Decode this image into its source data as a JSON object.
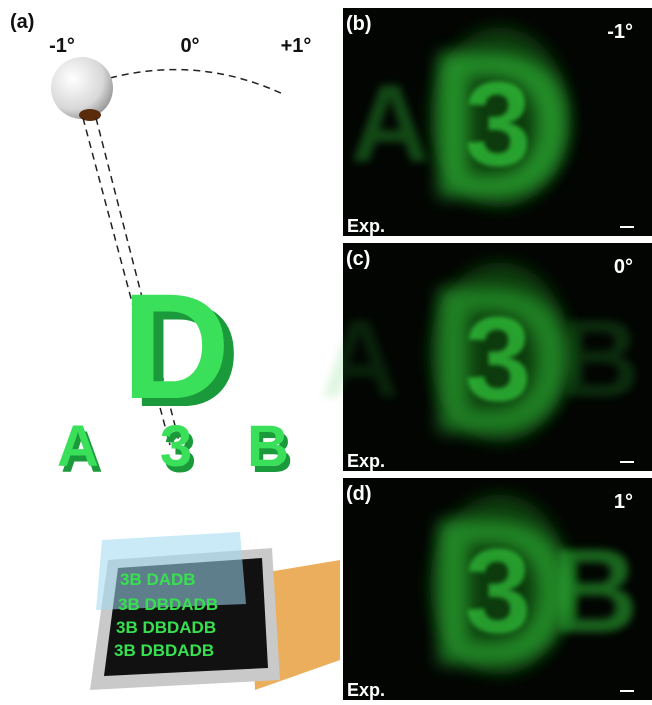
{
  "panel_a": {
    "label": "(a)",
    "angles": [
      "-1°",
      "0°",
      "+1°"
    ],
    "big_letter": "D",
    "row_letters": [
      "A",
      "3",
      "B"
    ]
  },
  "panels": [
    {
      "label": "(b)",
      "angle": "-1°",
      "caption": "Exp.",
      "letters": [
        "A",
        "3",
        "D"
      ]
    },
    {
      "label": "(c)",
      "angle": "0°",
      "caption": "Exp.",
      "letters": [
        "A",
        "3",
        "D",
        "B"
      ]
    },
    {
      "label": "(d)",
      "angle": "1°",
      "caption": "Exp.",
      "letters": [
        "3",
        "B",
        "D"
      ]
    }
  ]
}
